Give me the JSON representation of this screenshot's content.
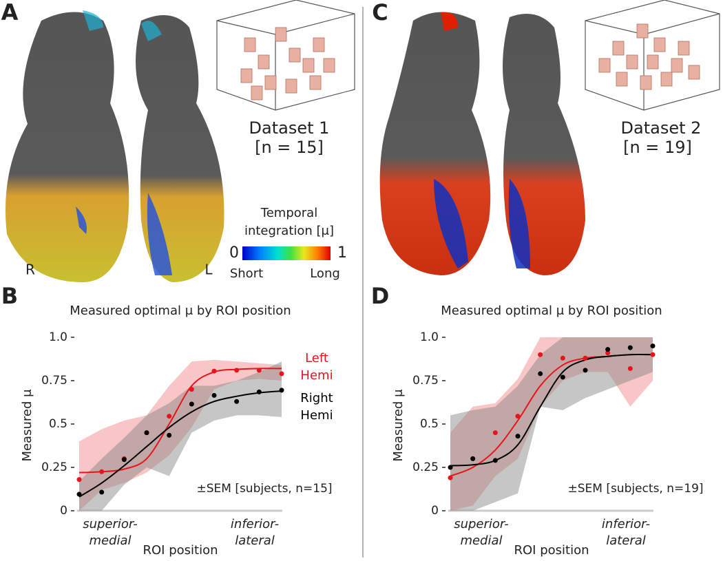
{
  "panels": [
    "A",
    "B",
    "C",
    "D"
  ],
  "hemisphere_labels": {
    "right": "R",
    "left": "L"
  },
  "datasets": [
    {
      "name": "Dataset 1",
      "n": "[n = 15]"
    },
    {
      "name": "Dataset 2",
      "n": "[n = 19]"
    }
  ],
  "colorbar": {
    "label": [
      "Temporal",
      "integration [μ]"
    ],
    "min": 0,
    "max": 1,
    "min_label": "Short",
    "max_label": "Long"
  },
  "chart_data": [
    {
      "type": "line",
      "title": "Measured optimal μ by ROI position",
      "ylabel": "Measured μ",
      "xlabel": "ROI position",
      "x_start_label": [
        "superior-",
        "medial"
      ],
      "x_end_label": [
        "inferior-",
        "lateral"
      ],
      "annotation": "±SEM [subjects, n=15]",
      "legend": "right",
      "x": [
        1,
        2,
        3,
        4,
        5,
        6,
        7,
        8,
        9,
        10
      ],
      "xlim": [
        1,
        10
      ],
      "ylim": [
        0,
        1
      ],
      "yticks": [
        0,
        0.25,
        0.5,
        0.75,
        {
          "value": 1,
          "label": "1.0"
        }
      ],
      "series": [
        {
          "name": "Left Hemi",
          "color": "#e8141c",
          "band_color": "#f08080",
          "values": [
            0.18,
            0.225,
            0.3,
            0.45,
            0.545,
            0.7,
            0.805,
            0.81,
            0.81,
            0.79
          ],
          "fit": [
            0.22,
            0.225,
            0.24,
            0.3,
            0.5,
            0.72,
            0.8,
            0.815,
            0.82,
            0.82
          ],
          "band_lower": [
            0.0,
            0.12,
            0.16,
            0.22,
            0.32,
            0.48,
            0.7,
            0.75,
            0.76,
            0.75
          ],
          "band_upper": [
            0.4,
            0.47,
            0.52,
            0.55,
            0.72,
            0.86,
            0.87,
            0.86,
            0.85,
            0.84
          ]
        },
        {
          "name": "Right Hemi",
          "color": "#000000",
          "band_color": "#808080",
          "values": [
            0.095,
            0.107,
            0.295,
            0.45,
            0.435,
            0.615,
            0.665,
            0.63,
            0.685,
            0.695
          ],
          "fit": [
            0.08,
            0.16,
            0.26,
            0.37,
            0.48,
            0.57,
            0.63,
            0.66,
            0.68,
            0.69
          ],
          "band_lower": [
            0.0,
            0.0,
            0.15,
            0.25,
            0.2,
            0.45,
            0.52,
            0.55,
            0.55,
            0.54
          ],
          "band_upper": [
            0.17,
            0.3,
            0.42,
            0.55,
            0.62,
            0.72,
            0.72,
            0.75,
            0.8,
            0.86
          ]
        }
      ]
    },
    {
      "type": "line",
      "title": "Measured optimal μ by ROI position",
      "ylabel": "Measured μ",
      "xlabel": "ROI position",
      "x_start_label": [
        "superior-",
        "medial"
      ],
      "x_end_label": [
        "inferior-",
        "lateral"
      ],
      "annotation": "±SEM [subjects, n=19]",
      "x": [
        1,
        2,
        3,
        4,
        5,
        6,
        7,
        8,
        9,
        10
      ],
      "xlim": [
        1,
        10
      ],
      "ylim": [
        0,
        1
      ],
      "yticks": [
        0,
        0.25,
        0.5,
        0.75,
        {
          "value": 1,
          "label": "1.0"
        }
      ],
      "series": [
        {
          "color": "#e8141c",
          "band_color": "#f08080",
          "values": [
            0.19,
            0.3,
            0.45,
            0.545,
            0.9,
            0.88,
            0.88,
            0.91,
            0.82,
            0.9
          ],
          "fit": [
            0.2,
            0.25,
            0.35,
            0.52,
            0.72,
            0.84,
            0.88,
            0.89,
            0.9,
            0.9
          ],
          "band_lower": [
            0.0,
            0.03,
            0.2,
            0.3,
            0.6,
            0.75,
            0.8,
            0.8,
            0.6,
            0.75
          ],
          "band_upper": [
            0.45,
            0.6,
            0.62,
            0.76,
            1.0,
            1.0,
            1.0,
            1.0,
            1.0,
            1.0
          ]
        },
        {
          "color": "#000000",
          "band_color": "#808080",
          "values": [
            0.25,
            0.3,
            0.29,
            0.43,
            0.79,
            0.77,
            0.81,
            0.93,
            0.94,
            0.95
          ],
          "fit": [
            0.26,
            0.265,
            0.29,
            0.38,
            0.6,
            0.8,
            0.87,
            0.89,
            0.9,
            0.9
          ],
          "band_lower": [
            0.0,
            0.0,
            0.05,
            0.1,
            0.6,
            0.58,
            0.65,
            0.7,
            0.75,
            0.8
          ],
          "band_upper": [
            0.55,
            0.58,
            0.6,
            0.72,
            0.9,
            1.0,
            1.0,
            1.0,
            1.0,
            1.0
          ]
        }
      ]
    }
  ]
}
